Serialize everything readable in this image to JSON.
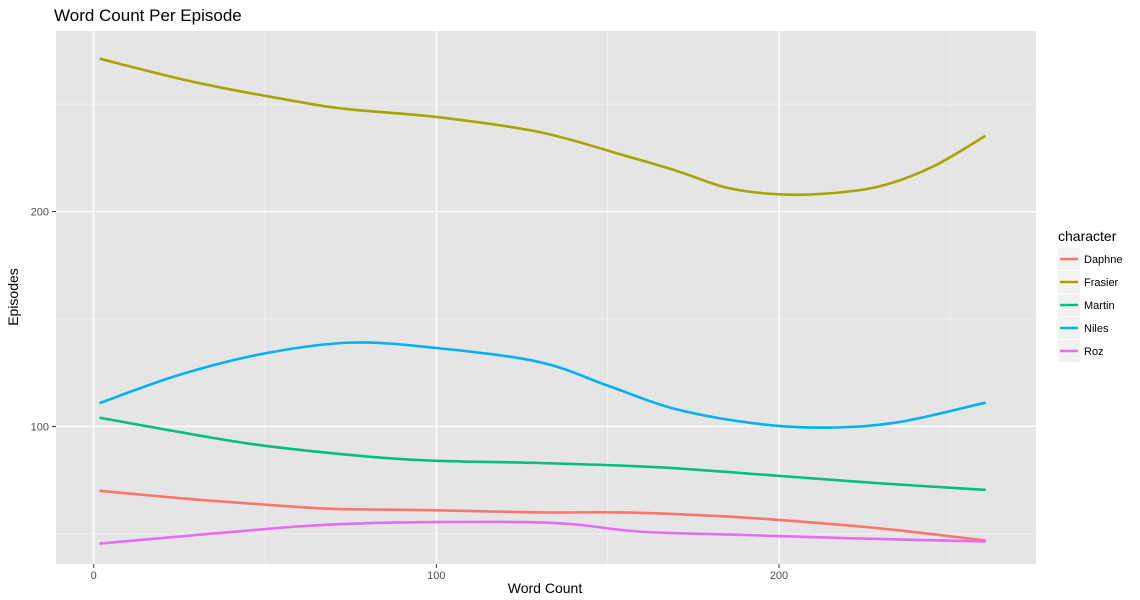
{
  "chart_data": {
    "type": "line",
    "title": "Word Count Per Episode",
    "xlabel": "Word Count",
    "ylabel": "Episodes",
    "xlim": [
      -11,
      275
    ],
    "ylim": [
      36,
      284
    ],
    "x_ticks": [
      0,
      100,
      200
    ],
    "y_ticks": [
      100,
      200
    ],
    "x_tick_labels": [
      "0",
      "100",
      "200"
    ],
    "y_tick_labels": [
      "100",
      "200"
    ],
    "grid": true,
    "legend_title": "character",
    "legend_position": "right",
    "series": [
      {
        "name": "Daphne",
        "color": "#F8766D",
        "points": [
          [
            2,
            70
          ],
          [
            30,
            66
          ],
          [
            60,
            62.5
          ],
          [
            73,
            61.5
          ],
          [
            100,
            61
          ],
          [
            130,
            60
          ],
          [
            155,
            60
          ],
          [
            180,
            58.5
          ],
          [
            200,
            56.5
          ],
          [
            230,
            52.5
          ],
          [
            260,
            47
          ]
        ]
      },
      {
        "name": "Frasier",
        "color": "#A3A500",
        "points": [
          [
            2,
            271
          ],
          [
            30,
            260
          ],
          [
            60,
            251
          ],
          [
            75,
            247.5
          ],
          [
            100,
            244
          ],
          [
            130,
            237
          ],
          [
            155,
            226
          ],
          [
            170,
            219
          ],
          [
            185,
            211
          ],
          [
            200,
            208
          ],
          [
            215,
            208.5
          ],
          [
            230,
            212
          ],
          [
            245,
            221
          ],
          [
            260,
            235
          ]
        ]
      },
      {
        "name": "Martin",
        "color": "#00BF7D",
        "points": [
          [
            2,
            104
          ],
          [
            30,
            96
          ],
          [
            50,
            91
          ],
          [
            80,
            86
          ],
          [
            100,
            84
          ],
          [
            130,
            83
          ],
          [
            165,
            81
          ],
          [
            200,
            77
          ],
          [
            230,
            73.5
          ],
          [
            260,
            70.5
          ]
        ]
      },
      {
        "name": "Niles",
        "color": "#00B0F6",
        "points": [
          [
            2,
            111
          ],
          [
            25,
            124
          ],
          [
            50,
            134
          ],
          [
            75,
            139
          ],
          [
            100,
            136.5
          ],
          [
            130,
            130
          ],
          [
            150,
            119
          ],
          [
            170,
            108
          ],
          [
            195,
            101
          ],
          [
            215,
            99.5
          ],
          [
            235,
            102
          ],
          [
            260,
            111
          ]
        ]
      },
      {
        "name": "Roz",
        "color": "#E76BF3",
        "points": [
          [
            2,
            45.5
          ],
          [
            30,
            49.5
          ],
          [
            60,
            53.5
          ],
          [
            80,
            55
          ],
          [
            100,
            55.5
          ],
          [
            125,
            55.5
          ],
          [
            140,
            54.5
          ],
          [
            160,
            51
          ],
          [
            190,
            49.5
          ],
          [
            220,
            48
          ],
          [
            260,
            46.5
          ]
        ]
      }
    ]
  }
}
